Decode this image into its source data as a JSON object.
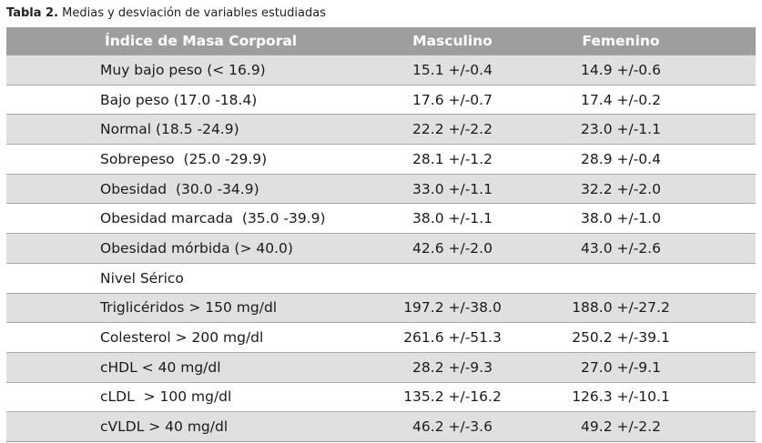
{
  "caption": {
    "lead": "Tabla 2.",
    "text": " Medias y desviación de variables estudiadas"
  },
  "table": {
    "headers": [
      "Índice de Masa Corporal",
      "Masculino",
      "Femenino"
    ],
    "rows": [
      {
        "label": "Muy bajo peso (< 16.9)",
        "masculino": "15.1 +/-0.4",
        "femenino": "14.9 +/-0.6"
      },
      {
        "label": "Bajo peso (17.0 -18.4)",
        "masculino": "17.6 +/-0.7",
        "femenino": "17.4 +/-0.2"
      },
      {
        "label": "Normal (18.5 -24.9)",
        "masculino": "22.2 +/-2.2",
        "femenino": "23.0 +/-1.1"
      },
      {
        "label": "Sobrepeso  (25.0 -29.9)",
        "masculino": "28.1 +/-1.2",
        "femenino": "28.9 +/-0.4"
      },
      {
        "label": "Obesidad  (30.0 -34.9)",
        "masculino": "33.0 +/-1.1",
        "femenino": "32.2 +/-2.0"
      },
      {
        "label": "Obesidad marcada  (35.0 -39.9)",
        "masculino": "38.0 +/-1.1",
        "femenino": "38.0 +/-1.0"
      },
      {
        "label": "Obesidad mórbida (> 40.0)",
        "masculino": "42.6 +/-2.0",
        "femenino": "43.0 +/-2.6"
      },
      {
        "label": "Nivel Sérico",
        "masculino": "",
        "femenino": ""
      },
      {
        "label": "Triglicéridos > 150 mg/dl",
        "masculino": "197.2 +/-38.0",
        "femenino": "188.0 +/-27.2"
      },
      {
        "label": "Colesterol > 200 mg/dl",
        "masculino": "261.6 +/-51.3",
        "femenino": "250.2 +/-39.1"
      },
      {
        "label": "cHDL < 40 mg/dl",
        "masculino": "28.2 +/-9.3",
        "femenino": "27.0 +/-9.1"
      },
      {
        "label": "cLDL  > 100 mg/dl",
        "masculino": "135.2 +/-16.2",
        "femenino": "126.3 +/-10.1"
      },
      {
        "label": "cVLDL > 40 mg/dl",
        "masculino": "46.2 +/-3.6",
        "femenino": "49.2 +/-2.2"
      }
    ]
  },
  "colors": {
    "header_bg": "#9e9e9e",
    "shaded_row_bg": "#e0e0e0",
    "plain_row_bg": "#ffffff"
  }
}
